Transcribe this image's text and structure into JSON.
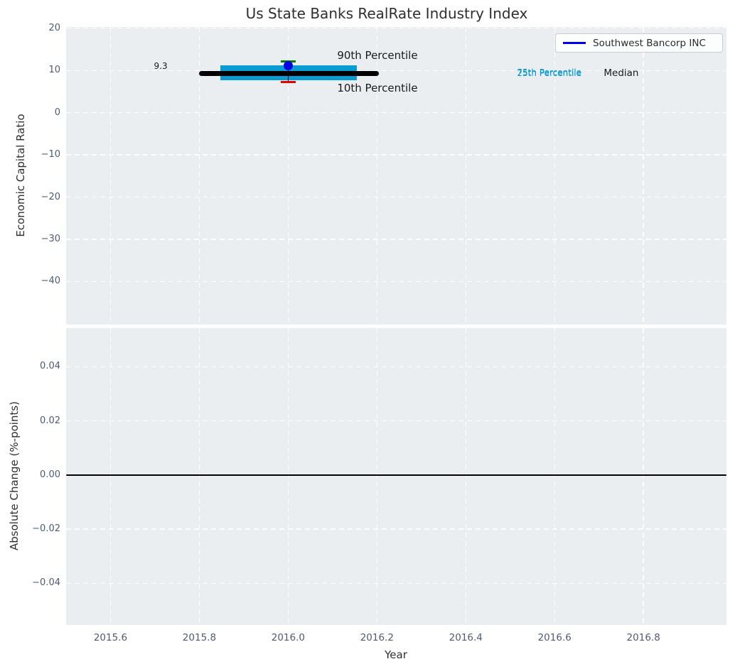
{
  "figure": {
    "title": "Us State Banks RealRate Industry Index",
    "colors": {
      "background": "#ffffff",
      "axes_background": "#eaeef1",
      "grid": "#ffffff",
      "tick_label": "#4c5d73",
      "text": "#2f2f2f",
      "median_line": "#000000",
      "iqr_bar": "#0a9bd2",
      "company_point": "#0000e6",
      "p90_cap": "#008000",
      "p10_cap": "#e60000",
      "zero_line": "#000000"
    }
  },
  "legend": {
    "position": "upper right",
    "entries": [
      {
        "label": "Southwest Bancorp INC",
        "color": "#0000e6"
      }
    ]
  },
  "chart_data": [
    {
      "type": "scatter",
      "title": "Us State Banks RealRate Industry Index",
      "xlabel": "",
      "ylabel": "Economic Capital Ratio",
      "xlim": [
        2015.5,
        2016.987
      ],
      "ylim": [
        -50.2,
        20.3
      ],
      "xticks": [
        2015.6,
        2015.8,
        2016.0,
        2016.2,
        2016.4,
        2016.6,
        2016.8
      ],
      "yticks": [
        20,
        10,
        0,
        -10,
        -20,
        -30,
        -40
      ],
      "ytick_labels": [
        "20",
        "10",
        "0",
        "−10",
        "−20",
        "−30",
        "−40"
      ],
      "grid": true,
      "legend_position": "upper right",
      "series": [
        {
          "name": "median-line",
          "kind": "hline",
          "y": 9.3,
          "x_start": 2015.8,
          "x_end": 2016.205,
          "color": "#000000",
          "linewidth": 7
        },
        {
          "name": "interquartile-bar",
          "kind": "bar",
          "x_start": 2015.848,
          "x_end": 2016.155,
          "y_low": 7.7,
          "y_high": 11.2,
          "color": "#0a9bd2"
        },
        {
          "name": "percentile-whisker",
          "kind": "errorbar",
          "x": 2016.0,
          "y_low": 7.3,
          "y_high": 12.1,
          "cap_halfwidth": 0.017,
          "line_color": "#000000",
          "cap_high_color": "#008000",
          "cap_low_color": "#e60000"
        },
        {
          "name": "company-point",
          "kind": "point",
          "x": 2016.0,
          "y": 11.1,
          "size": 13,
          "color": "#0000e6"
        }
      ],
      "annotations": {
        "median_value": {
          "text": "9.3",
          "x": 2015.713,
          "y": 11.0,
          "color": "#1a1a1a",
          "size": 12
        },
        "p90": {
          "text": "90th Percentile",
          "x": 2016.201,
          "y": 13.6,
          "color": "#1a1a1a",
          "size": 15
        },
        "p10": {
          "text": "10th Percentile",
          "x": 2016.201,
          "y": 5.9,
          "color": "#1a1a1a",
          "size": 15
        },
        "p75": {
          "text": "75th Percentile",
          "x": 2016.588,
          "y": 9.5,
          "color": "#0a9bd2",
          "size": 12
        },
        "p25": {
          "text": "25th Percentile",
          "x": 2016.588,
          "y": 9.35,
          "color": "#0a9bd2",
          "size": 12
        },
        "median": {
          "text": "Median",
          "x": 2016.75,
          "y": 9.4,
          "color": "#1a1a1a",
          "size": 13.5
        }
      }
    },
    {
      "type": "line",
      "xlabel": "Year",
      "ylabel": "Absolute Change (%-points)",
      "xlim": [
        2015.5,
        2016.987
      ],
      "ylim": [
        -0.0554,
        0.0543
      ],
      "xticks": [
        2015.6,
        2015.8,
        2016.0,
        2016.2,
        2016.4,
        2016.6,
        2016.8
      ],
      "xtick_labels": [
        "2015.6",
        "2015.8",
        "2016.0",
        "2016.2",
        "2016.4",
        "2016.6",
        "2016.8"
      ],
      "yticks": [
        0.04,
        0.02,
        0.0,
        -0.02,
        -0.04
      ],
      "ytick_labels": [
        "0.04",
        "0.02",
        "0.00",
        "−0.02",
        "−0.04"
      ],
      "grid": true,
      "series": [
        {
          "name": "zero-line",
          "kind": "hline",
          "y": 0.0,
          "x_start": 2015.5,
          "x_end": 2016.987,
          "color": "#000000",
          "linewidth": 2
        }
      ]
    }
  ]
}
